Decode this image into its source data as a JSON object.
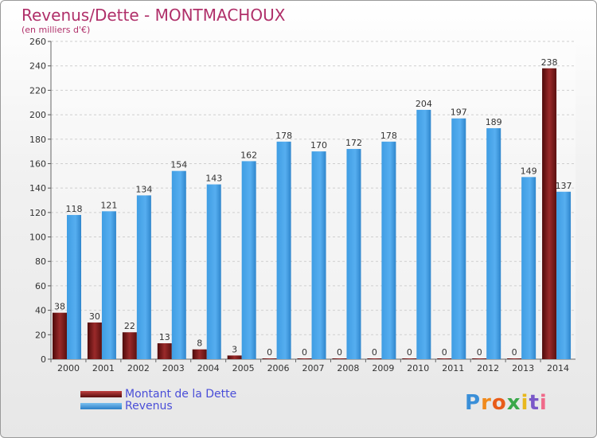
{
  "title": "Revenus/Dette - MONTMACHOUX",
  "subtitle": "(en milliers d'€)",
  "logo": {
    "letters": [
      "P",
      "r",
      "o",
      "x",
      "i",
      "t",
      "i"
    ],
    "colors": [
      "#3a8fd8",
      "#f08a1c",
      "#e85c1a",
      "#3aa84a",
      "#e8b81c",
      "#7a58c8",
      "#f06a8a"
    ]
  },
  "colors": {
    "dette": "#7a1a1a",
    "revenus": "#3a95de",
    "axis_text": "#333333",
    "title": "#b0306a"
  },
  "chart_data": {
    "type": "bar",
    "categories": [
      "2000",
      "2001",
      "2002",
      "2003",
      "2004",
      "2005",
      "2006",
      "2007",
      "2008",
      "2009",
      "2010",
      "2011",
      "2012",
      "2013",
      "2014"
    ],
    "series": [
      {
        "name": "Montant de la Dette",
        "values": [
          38,
          30,
          22,
          13,
          8,
          3,
          0,
          0,
          0,
          0,
          0,
          0,
          0,
          0,
          238
        ]
      },
      {
        "name": "Revenus",
        "values": [
          118,
          121,
          134,
          154,
          143,
          162,
          178,
          170,
          172,
          178,
          204,
          197,
          189,
          149,
          137
        ]
      }
    ],
    "ylim": [
      0,
      260
    ],
    "yticks": [
      0,
      20,
      40,
      60,
      80,
      100,
      120,
      140,
      160,
      180,
      200,
      220,
      240,
      260
    ],
    "grid": true,
    "legend_position": "bottom-left"
  }
}
